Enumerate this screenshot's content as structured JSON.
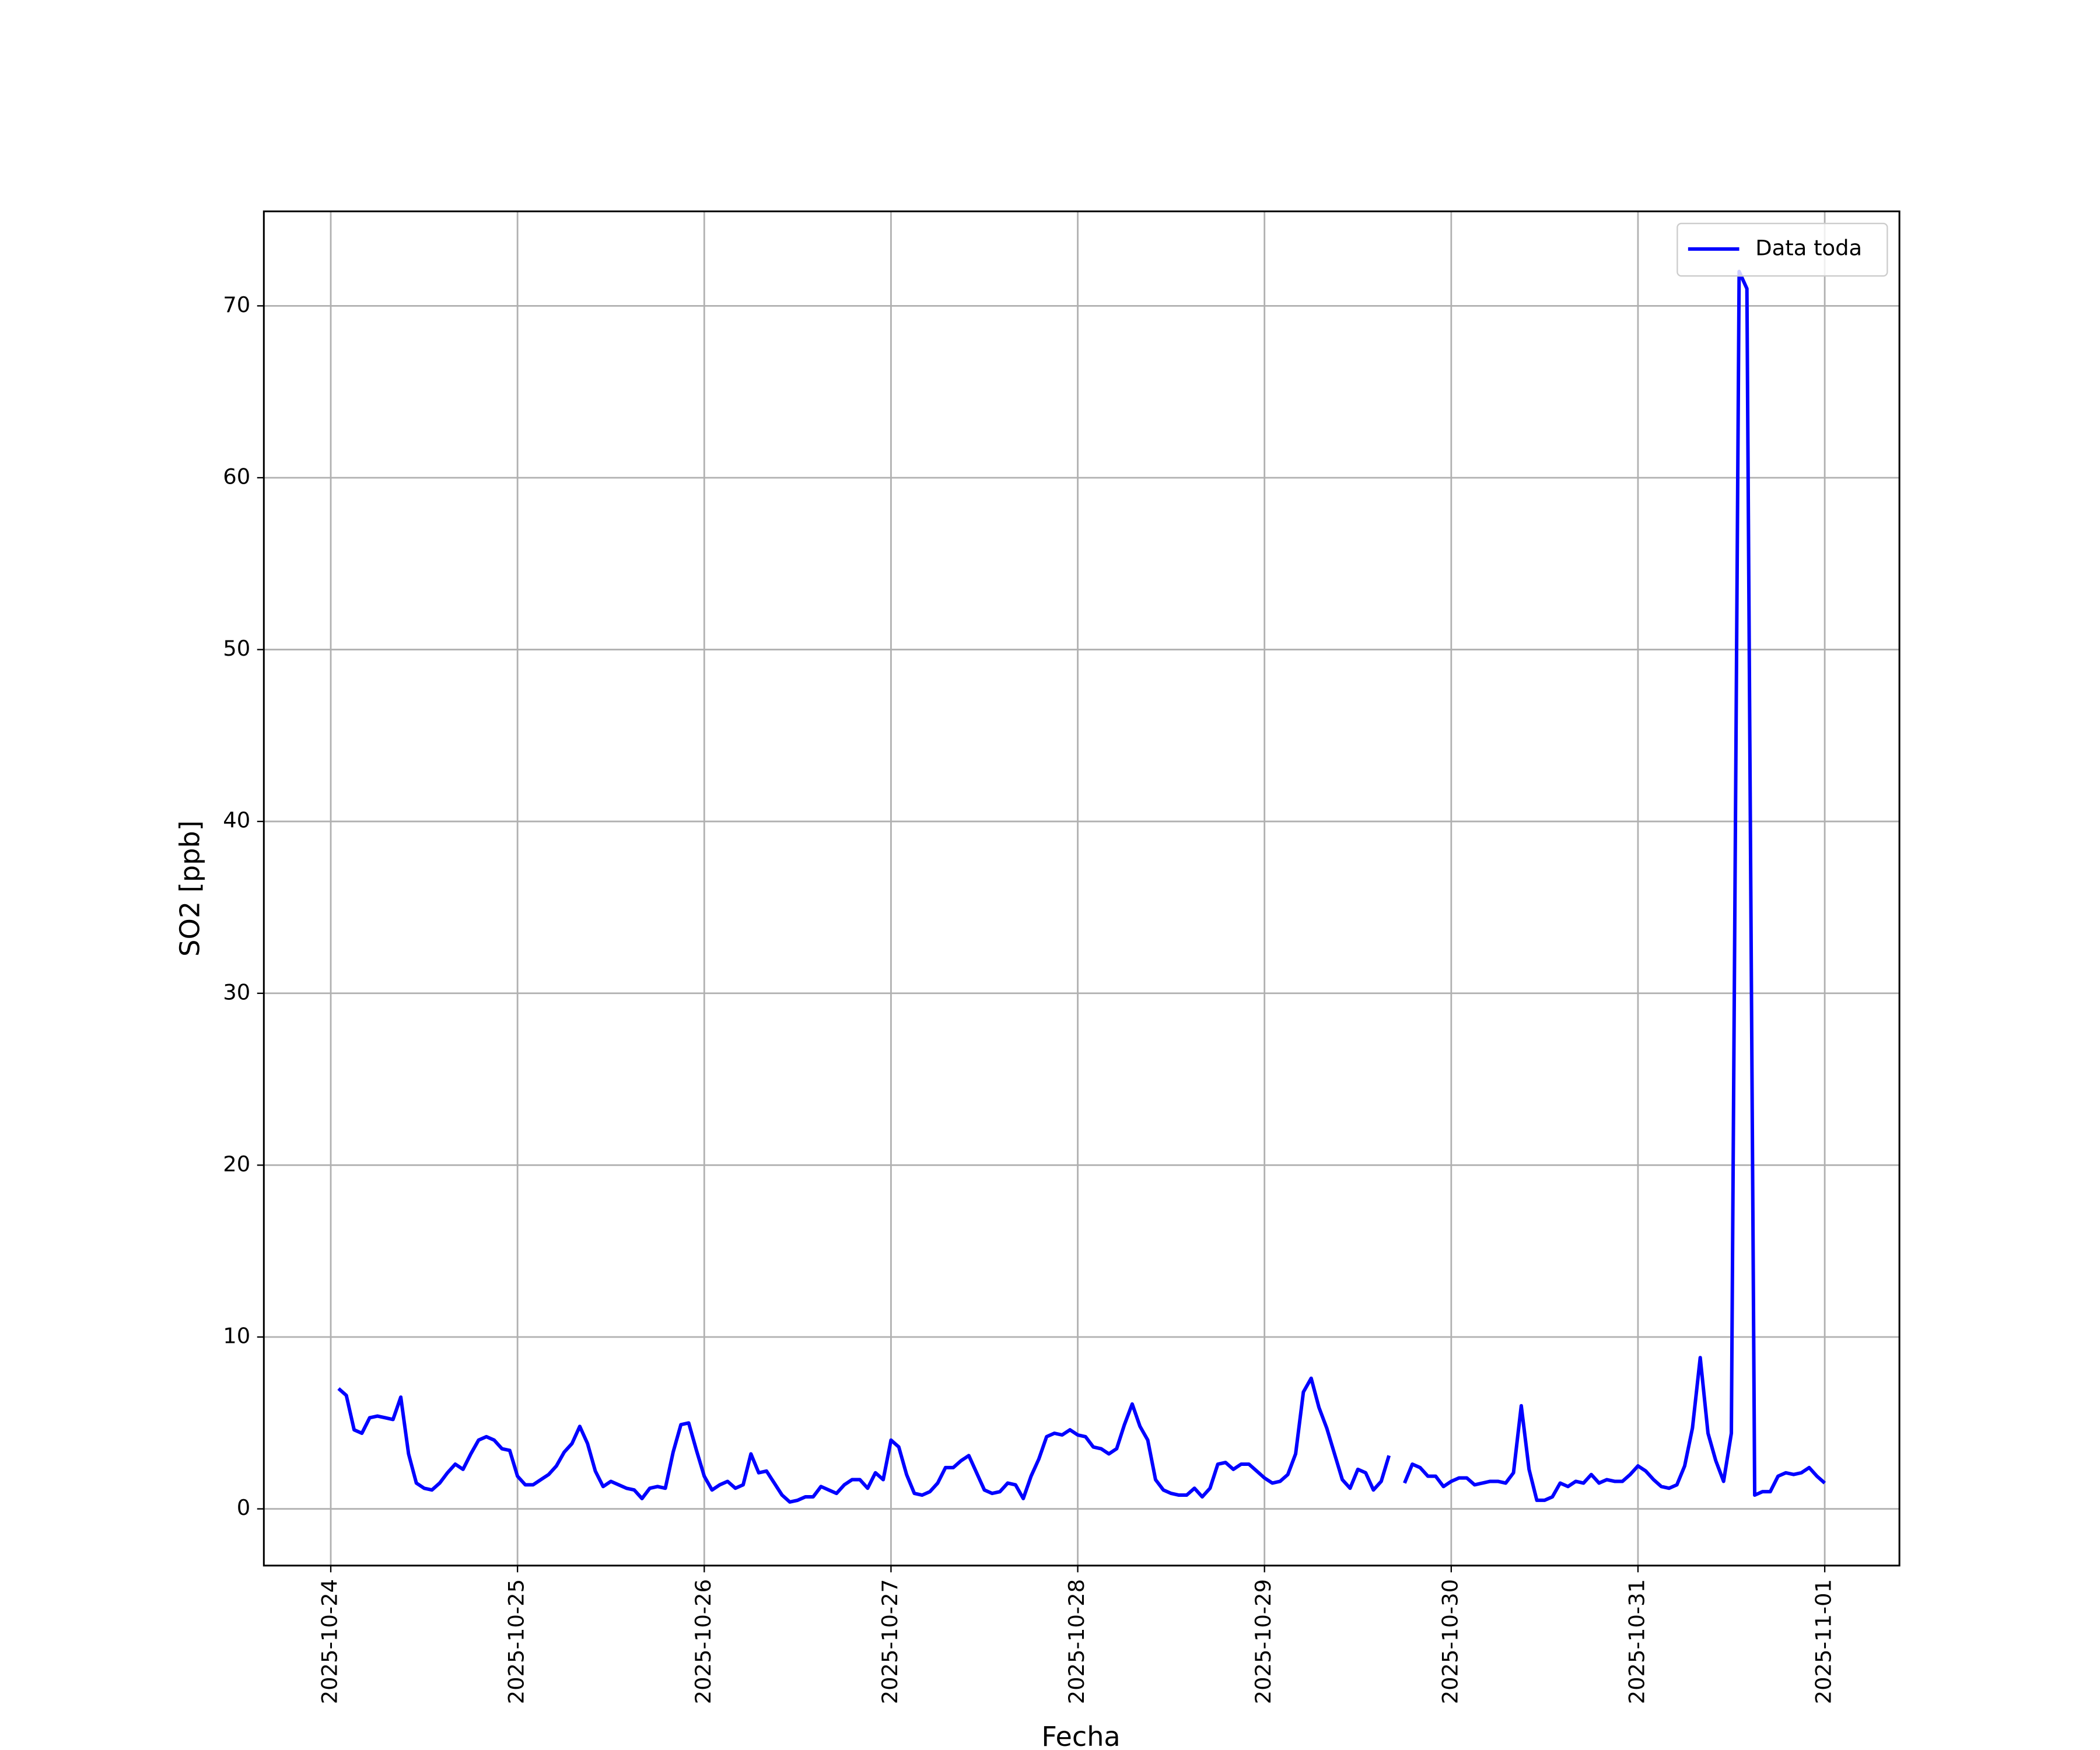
{
  "chart_data": {
    "type": "line",
    "xlabel": "Fecha",
    "ylabel": "SO2 [ppb]",
    "xlim": [
      "2025-10-23 15:24",
      "2025-11-01 09:36"
    ],
    "xticks": [
      "2025-10-24",
      "2025-10-25",
      "2025-10-26",
      "2025-10-27",
      "2025-10-28",
      "2025-10-29",
      "2025-10-30",
      "2025-10-31",
      "2025-11-01"
    ],
    "ylim": [
      -3.3,
      75.5
    ],
    "yticks": [
      0,
      10,
      20,
      30,
      40,
      50,
      60,
      70
    ],
    "grid": true,
    "legend": "upper right",
    "x": [
      "2025-10-24 01:00",
      "2025-10-24 02:00",
      "2025-10-24 03:00",
      "2025-10-24 04:00",
      "2025-10-24 05:00",
      "2025-10-24 06:00",
      "2025-10-24 07:00",
      "2025-10-24 08:00",
      "2025-10-24 09:00",
      "2025-10-24 10:00",
      "2025-10-24 11:00",
      "2025-10-24 12:00",
      "2025-10-24 13:00",
      "2025-10-24 14:00",
      "2025-10-24 15:00",
      "2025-10-24 16:00",
      "2025-10-24 17:00",
      "2025-10-24 18:00",
      "2025-10-24 19:00",
      "2025-10-24 20:00",
      "2025-10-24 21:00",
      "2025-10-24 22:00",
      "2025-10-24 23:00",
      "2025-10-25 00:00",
      "2025-10-25 01:00",
      "2025-10-25 02:00",
      "2025-10-25 03:00",
      "2025-10-25 04:00",
      "2025-10-25 05:00",
      "2025-10-25 06:00",
      "2025-10-25 07:00",
      "2025-10-25 08:00",
      "2025-10-25 09:00",
      "2025-10-25 10:00",
      "2025-10-25 11:00",
      "2025-10-25 12:00",
      "2025-10-25 13:00",
      "2025-10-25 14:00",
      "2025-10-25 15:00",
      "2025-10-25 16:00",
      "2025-10-25 17:00",
      "2025-10-25 18:00",
      "2025-10-25 19:00",
      "2025-10-25 20:00",
      "2025-10-25 21:00",
      "2025-10-25 22:00",
      "2025-10-25 23:00",
      "2025-10-26 00:00",
      "2025-10-26 01:00",
      "2025-10-26 02:00",
      "2025-10-26 03:00",
      "2025-10-26 04:00",
      "2025-10-26 05:00",
      "2025-10-26 06:00",
      "2025-10-26 07:00",
      "2025-10-26 08:00",
      "2025-10-26 09:00",
      "2025-10-26 10:00",
      "2025-10-26 11:00",
      "2025-10-26 12:00",
      "2025-10-26 13:00",
      "2025-10-26 14:00",
      "2025-10-26 15:00",
      "2025-10-26 16:00",
      "2025-10-26 17:00",
      "2025-10-26 18:00",
      "2025-10-26 19:00",
      "2025-10-26 20:00",
      "2025-10-26 21:00",
      "2025-10-26 22:00",
      "2025-10-26 23:00",
      "2025-10-27 00:00",
      "2025-10-27 01:00",
      "2025-10-27 02:00",
      "2025-10-27 03:00",
      "2025-10-27 04:00",
      "2025-10-27 05:00",
      "2025-10-27 06:00",
      "2025-10-27 07:00",
      "2025-10-27 08:00",
      "2025-10-27 09:00",
      "2025-10-27 10:00",
      "2025-10-27 11:00",
      "2025-10-27 12:00",
      "2025-10-27 13:00",
      "2025-10-27 14:00",
      "2025-10-27 15:00",
      "2025-10-27 16:00",
      "2025-10-27 17:00",
      "2025-10-27 18:00",
      "2025-10-27 19:00",
      "2025-10-27 20:00",
      "2025-10-27 21:00",
      "2025-10-27 22:00",
      "2025-10-27 23:00",
      "2025-10-28 00:00",
      "2025-10-28 01:00",
      "2025-10-28 02:00",
      "2025-10-28 03:00",
      "2025-10-28 04:00",
      "2025-10-28 05:00",
      "2025-10-28 06:00",
      "2025-10-28 07:00",
      "2025-10-28 08:00",
      "2025-10-28 09:00",
      "2025-10-28 10:00",
      "2025-10-28 11:00",
      "2025-10-28 12:00",
      "2025-10-28 13:00",
      "2025-10-28 14:00",
      "2025-10-28 15:00",
      "2025-10-28 16:00",
      "2025-10-28 17:00",
      "2025-10-28 18:00",
      "2025-10-28 19:00",
      "2025-10-28 20:00",
      "2025-10-28 21:00",
      "2025-10-28 22:00",
      "2025-10-28 23:00",
      "2025-10-29 00:00",
      "2025-10-29 01:00",
      "2025-10-29 02:00",
      "2025-10-29 03:00",
      "2025-10-29 04:00",
      "2025-10-29 05:00",
      "2025-10-29 06:00",
      "2025-10-29 07:00",
      "2025-10-29 08:00",
      "2025-10-29 09:00",
      "2025-10-29 10:00",
      "2025-10-29 11:00",
      "2025-10-29 12:00",
      "2025-10-29 13:00",
      "2025-10-29 14:00",
      "2025-10-29 15:00",
      "2025-10-29 16:00",
      "2025-10-29 17:00",
      "2025-10-29 18:00",
      "2025-10-29 19:00",
      "2025-10-29 20:00",
      "2025-10-29 21:00",
      "2025-10-29 22:00",
      "2025-10-29 23:00",
      "2025-10-30 00:00",
      "2025-10-30 01:00",
      "2025-10-30 02:00",
      "2025-10-30 03:00",
      "2025-10-30 04:00",
      "2025-10-30 05:00",
      "2025-10-30 06:00",
      "2025-10-30 07:00",
      "2025-10-30 08:00",
      "2025-10-30 09:00",
      "2025-10-30 10:00",
      "2025-10-30 11:00",
      "2025-10-30 12:00",
      "2025-10-30 13:00",
      "2025-10-30 14:00",
      "2025-10-30 15:00",
      "2025-10-30 16:00",
      "2025-10-30 17:00",
      "2025-10-30 18:00",
      "2025-10-30 19:00",
      "2025-10-30 20:00",
      "2025-10-30 21:00",
      "2025-10-30 22:00",
      "2025-10-30 23:00",
      "2025-10-31 00:00",
      "2025-10-31 01:00",
      "2025-10-31 02:00",
      "2025-10-31 03:00",
      "2025-10-31 04:00",
      "2025-10-31 05:00",
      "2025-10-31 06:00",
      "2025-10-31 07:00",
      "2025-10-31 08:00",
      "2025-10-31 09:00",
      "2025-10-31 10:00",
      "2025-10-31 11:00",
      "2025-10-31 12:00",
      "2025-10-31 13:00",
      "2025-10-31 14:00",
      "2025-10-31 15:00",
      "2025-10-31 16:00",
      "2025-10-31 17:00",
      "2025-10-31 18:00",
      "2025-10-31 19:00",
      "2025-10-31 20:00",
      "2025-10-31 21:00",
      "2025-10-31 22:00",
      "2025-10-31 23:00",
      "2025-11-01 00:00"
    ],
    "series": [
      {
        "name": "Data toda",
        "color": "#0000ff",
        "values": [
          7.0,
          6.6,
          4.6,
          4.4,
          5.3,
          5.4,
          5.3,
          5.2,
          6.5,
          3.2,
          1.5,
          1.2,
          1.1,
          1.5,
          2.1,
          2.6,
          2.3,
          3.2,
          4.0,
          4.2,
          4.0,
          3.5,
          3.4,
          1.9,
          1.4,
          1.4,
          1.7,
          2.0,
          2.5,
          3.3,
          3.8,
          4.8,
          3.8,
          2.2,
          1.3,
          1.6,
          1.4,
          1.2,
          1.1,
          0.6,
          1.2,
          1.3,
          1.2,
          3.3,
          4.9,
          5.0,
          3.4,
          1.9,
          1.1,
          1.4,
          1.6,
          1.2,
          1.4,
          3.2,
          2.1,
          2.2,
          1.5,
          0.8,
          0.4,
          0.5,
          0.7,
          0.7,
          1.3,
          1.1,
          0.9,
          1.4,
          1.7,
          1.7,
          1.2,
          2.1,
          1.7,
          4.0,
          3.6,
          2.0,
          0.9,
          0.8,
          1.0,
          1.5,
          2.4,
          2.4,
          2.8,
          3.1,
          2.1,
          1.1,
          0.9,
          1.0,
          1.5,
          1.4,
          0.6,
          1.9,
          2.9,
          4.2,
          4.4,
          4.3,
          4.6,
          4.3,
          4.2,
          3.6,
          3.5,
          3.2,
          3.5,
          4.9,
          6.1,
          4.8,
          4.0,
          1.7,
          1.1,
          0.9,
          0.8,
          0.8,
          1.2,
          0.7,
          1.2,
          2.6,
          2.7,
          2.3,
          2.6,
          2.6,
          2.2,
          1.8,
          1.5,
          1.6,
          2.0,
          3.2,
          6.8,
          7.6,
          5.9,
          4.7,
          3.2,
          1.7,
          1.2,
          2.3,
          2.1,
          1.1,
          1.6,
          3.1,
          null,
          1.5,
          2.6,
          2.4,
          1.9,
          1.9,
          1.3,
          1.6,
          1.8,
          1.8,
          1.4,
          1.5,
          1.6,
          1.6,
          1.5,
          2.1,
          6.0,
          2.3,
          0.5,
          0.5,
          0.7,
          1.5,
          1.3,
          1.6,
          1.5,
          2.0,
          1.5,
          1.7,
          1.6,
          1.6,
          2.0,
          2.5,
          2.2,
          1.7,
          1.3,
          1.2,
          1.4,
          2.5,
          4.7,
          8.8,
          4.4,
          2.8,
          1.6,
          4.4,
          72.0,
          71.0,
          0.8,
          1.0,
          1.0,
          1.9,
          2.1,
          2.0,
          2.1,
          2.4,
          1.9,
          1.5
        ]
      }
    ]
  }
}
